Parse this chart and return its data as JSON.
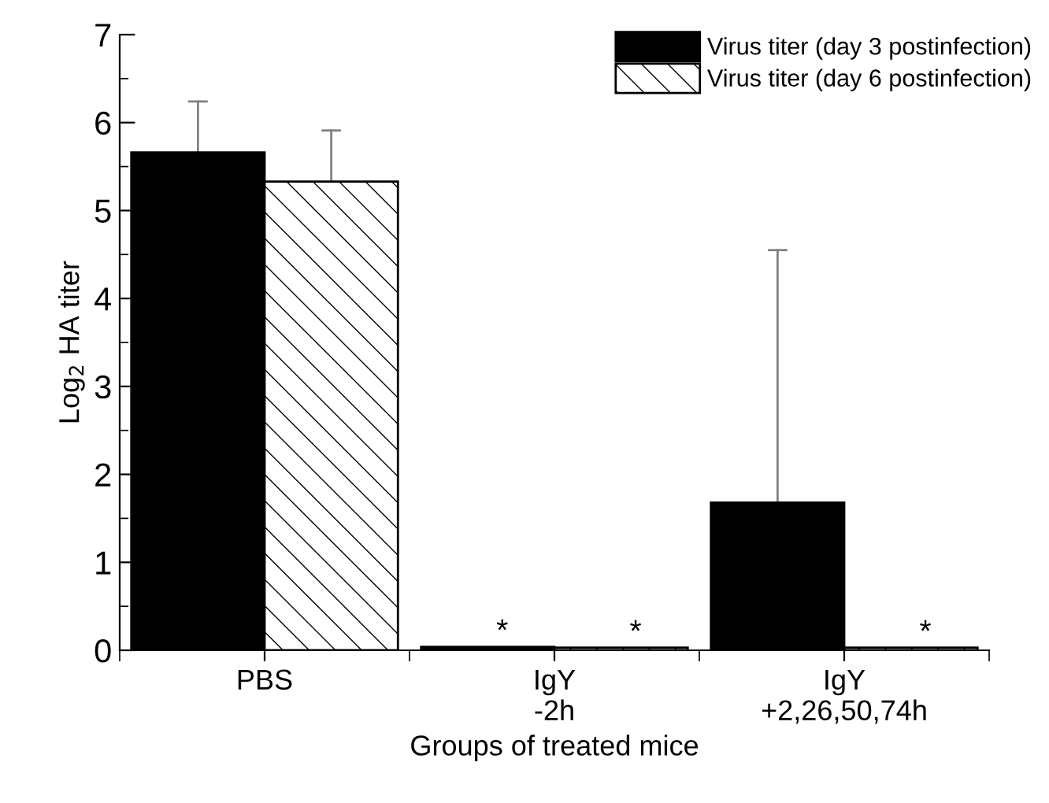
{
  "chart_data": {
    "type": "bar",
    "xlabel": "Groups of treated mice",
    "ylabel": "Log$_{2}$ HA titer",
    "categories": [
      "PBS",
      "IgY\n-2h",
      "IgY\n+2,26,50,74h"
    ],
    "series": [
      {
        "name": "Virus titer (day 3 postinfection)",
        "color": "#000000",
        "values": [
          5.66,
          0.04,
          1.68
        ],
        "errors": [
          [
            5.66,
            6.24
          ],
          null,
          [
            1.68,
            4.55
          ]
        ]
      },
      {
        "name": "Virus titer (day 6 postinfection)",
        "color": "#000000",
        "values": [
          5.33,
          0.03,
          0.03
        ],
        "errors": [
          [
            5.33,
            5.91
          ],
          null,
          null
        ]
      }
    ],
    "annotations": [
      {
        "text": "*",
        "x": "IgY\n-2h",
        "y": 0.04
      },
      {
        "text": "*",
        "x": "IgY\n-2h",
        "y": 0.03
      },
      {
        "text": "*",
        "x": "IgY\n+2,26,50,74h",
        "y": 0.03
      }
    ],
    "ylim": [
      0,
      7
    ],
    "yticks": [
      0,
      1,
      2,
      3,
      4,
      5,
      6,
      7
    ],
    "grid": false,
    "legend": "top right"
  }
}
